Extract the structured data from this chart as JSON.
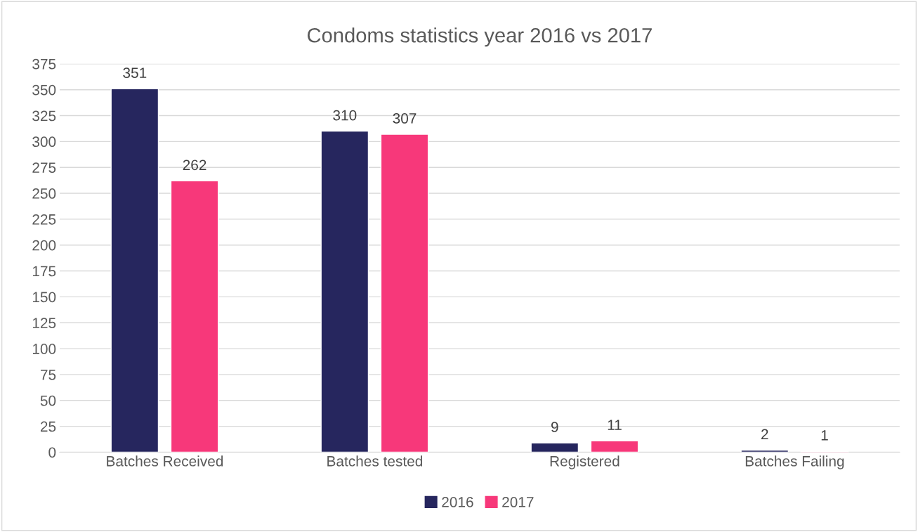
{
  "chart_data": {
    "type": "bar",
    "title": "Condoms statistics year 2016 vs 2017",
    "categories": [
      "Batches Received",
      "Batches tested",
      "Registered",
      "Batches Failing"
    ],
    "series": [
      {
        "name": "2016",
        "color": "#26265e",
        "values": [
          351,
          310,
          9,
          2
        ]
      },
      {
        "name": "2017",
        "color": "#f7387a",
        "values": [
          262,
          307,
          11,
          1
        ]
      }
    ],
    "ylim": [
      0,
      375
    ],
    "yticks": [
      0,
      25,
      50,
      75,
      100,
      125,
      150,
      175,
      200,
      225,
      250,
      275,
      300,
      325,
      350,
      375
    ],
    "grid": "y",
    "legend": "bottom",
    "data_labels": true
  }
}
